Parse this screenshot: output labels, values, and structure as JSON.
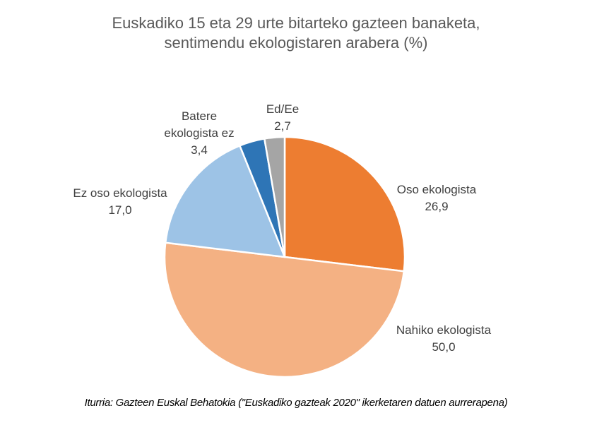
{
  "chart_data": {
    "type": "pie",
    "title": "Euskadiko 15 eta 29 urte bitarteko gazteen banaketa, sentimendu ekologistaren arabera (%)",
    "title_lines": [
      "Euskadiko 15 eta 29 urte bitarteko gazteen banaketa,",
      "sentimendu ekologistaren arabera (%)"
    ],
    "categories": [
      "Oso ekologista",
      "Nahiko ekologista",
      "Ez oso ekologista",
      "Batere ekologista ez",
      "Ed/Ee"
    ],
    "values": [
      26.9,
      50.0,
      17.0,
      3.4,
      2.7
    ],
    "value_labels": [
      "26,9",
      "50,0",
      "17,0",
      "3,4",
      "2,7"
    ],
    "colors": [
      "#ED7D31",
      "#F4B183",
      "#9DC3E6",
      "#2E75B6",
      "#A5A5A5"
    ],
    "start_angle": "12 o'clock, clockwise",
    "legend": "none (data labels)",
    "source": "Iturria: Gazteen Euskal Behatokia (\"Euskadiko gazteak 2020\" ikerketaren datuen aurrerapena)"
  },
  "labels": {
    "oso": {
      "name": "Oso ekologista",
      "value": "26,9"
    },
    "nahiko": {
      "name": "Nahiko ekologista",
      "value": "50,0"
    },
    "ezoso": {
      "name": "Ez oso ekologista",
      "value": "17,0"
    },
    "batere": {
      "name1": "Batere",
      "name2": "ekologista ez",
      "value": "3,4"
    },
    "edee": {
      "name": "Ed/Ee",
      "value": "2,7"
    }
  }
}
